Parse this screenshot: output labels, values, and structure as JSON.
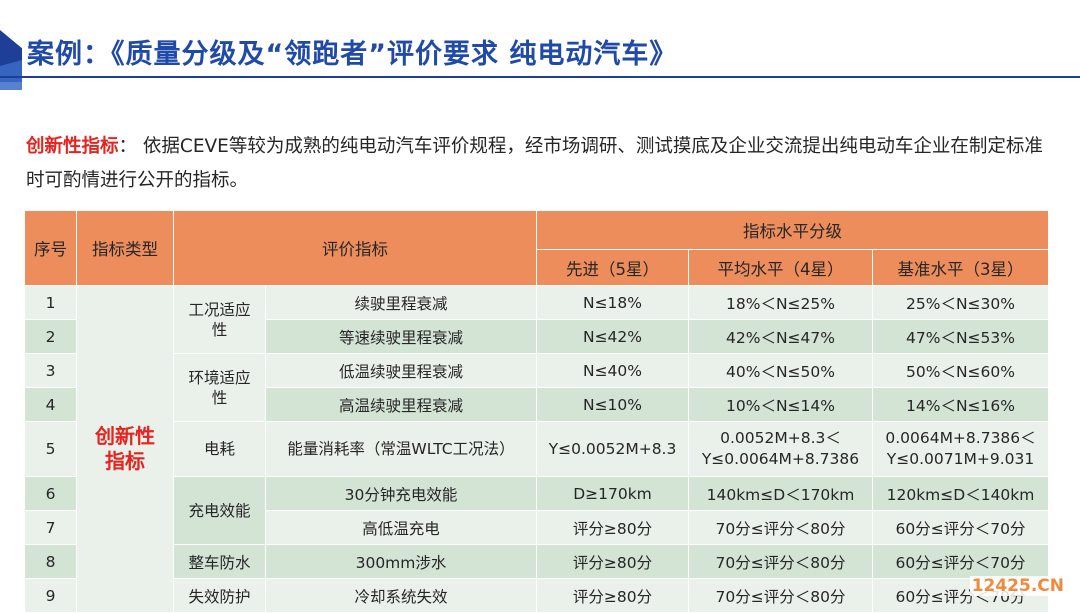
{
  "title": "案例：《质量分级及“领跑者”评价要求 纯电动汽车》",
  "intro": {
    "highlight": "创新性指标",
    "text": "： 依据CEVE等较为成熟的纯电动汽车评价规程，经市场调研、测试摸底及企业交流提出纯电动车企业在制定标准时可酌情进行公开的指标。"
  },
  "table": {
    "headers": {
      "no": "序号",
      "type": "指标类型",
      "indicator": "评价指标",
      "grade_group": "指标水平分级",
      "grades": [
        "先进（5星）",
        "平均水平（4星）",
        "基准水平（3星）"
      ]
    },
    "category": "创新性\n指标",
    "rows": [
      {
        "no": "1",
        "sub": "工况适应\n性",
        "name": "续驶里程衰减",
        "g5": "N≤18%",
        "g4": "18%＜N≤25%",
        "g3": "25%＜N≤30%"
      },
      {
        "no": "2",
        "sub": "",
        "name": "等速续驶里程衰减",
        "g5": "N≤42%",
        "g4": "42%＜N≤47%",
        "g3": "47%＜N≤53%"
      },
      {
        "no": "3",
        "sub": "环境适应\n性",
        "name": "低温续驶里程衰减",
        "g5": "N≤40%",
        "g4": "40%＜N≤50%",
        "g3": "50%＜N≤60%"
      },
      {
        "no": "4",
        "sub": "",
        "name": "高温续驶里程衰减",
        "g5": "N≤10%",
        "g4": "10%＜N≤14%",
        "g3": "14%＜N≤16%"
      },
      {
        "no": "5",
        "sub": "电耗",
        "name": "能量消耗率（常温WLTC工况法）",
        "g5": "Y≤0.0052M+8.3",
        "g4": "0.0052M+8.3＜\nY≤0.0064M+8.7386",
        "g3": "0.0064M+8.7386＜\nY≤0.0071M+9.031"
      },
      {
        "no": "6",
        "sub": "充电效能",
        "name": "30分钟充电效能",
        "g5": "D≥170km",
        "g4": "140km≤D＜170km",
        "g3": "120km≤D＜140km"
      },
      {
        "no": "7",
        "sub": "",
        "name": "高低温充电",
        "g5": "评分≥80分",
        "g4": "70分≤评分＜80分",
        "g3": "60分≤评分＜70分"
      },
      {
        "no": "8",
        "sub": "整车防水",
        "name": "300mm涉水",
        "g5": "评分≥80分",
        "g4": "70分≤评分＜80分",
        "g3": "60分≤评分＜70分"
      },
      {
        "no": "9",
        "sub": "失效防护",
        "name": "冷却系统失效",
        "g5": "评分≥80分",
        "g4": "70分≤评分＜80分",
        "g3": "60分≤评分＜70分"
      }
    ]
  },
  "watermark": "12425.CN"
}
